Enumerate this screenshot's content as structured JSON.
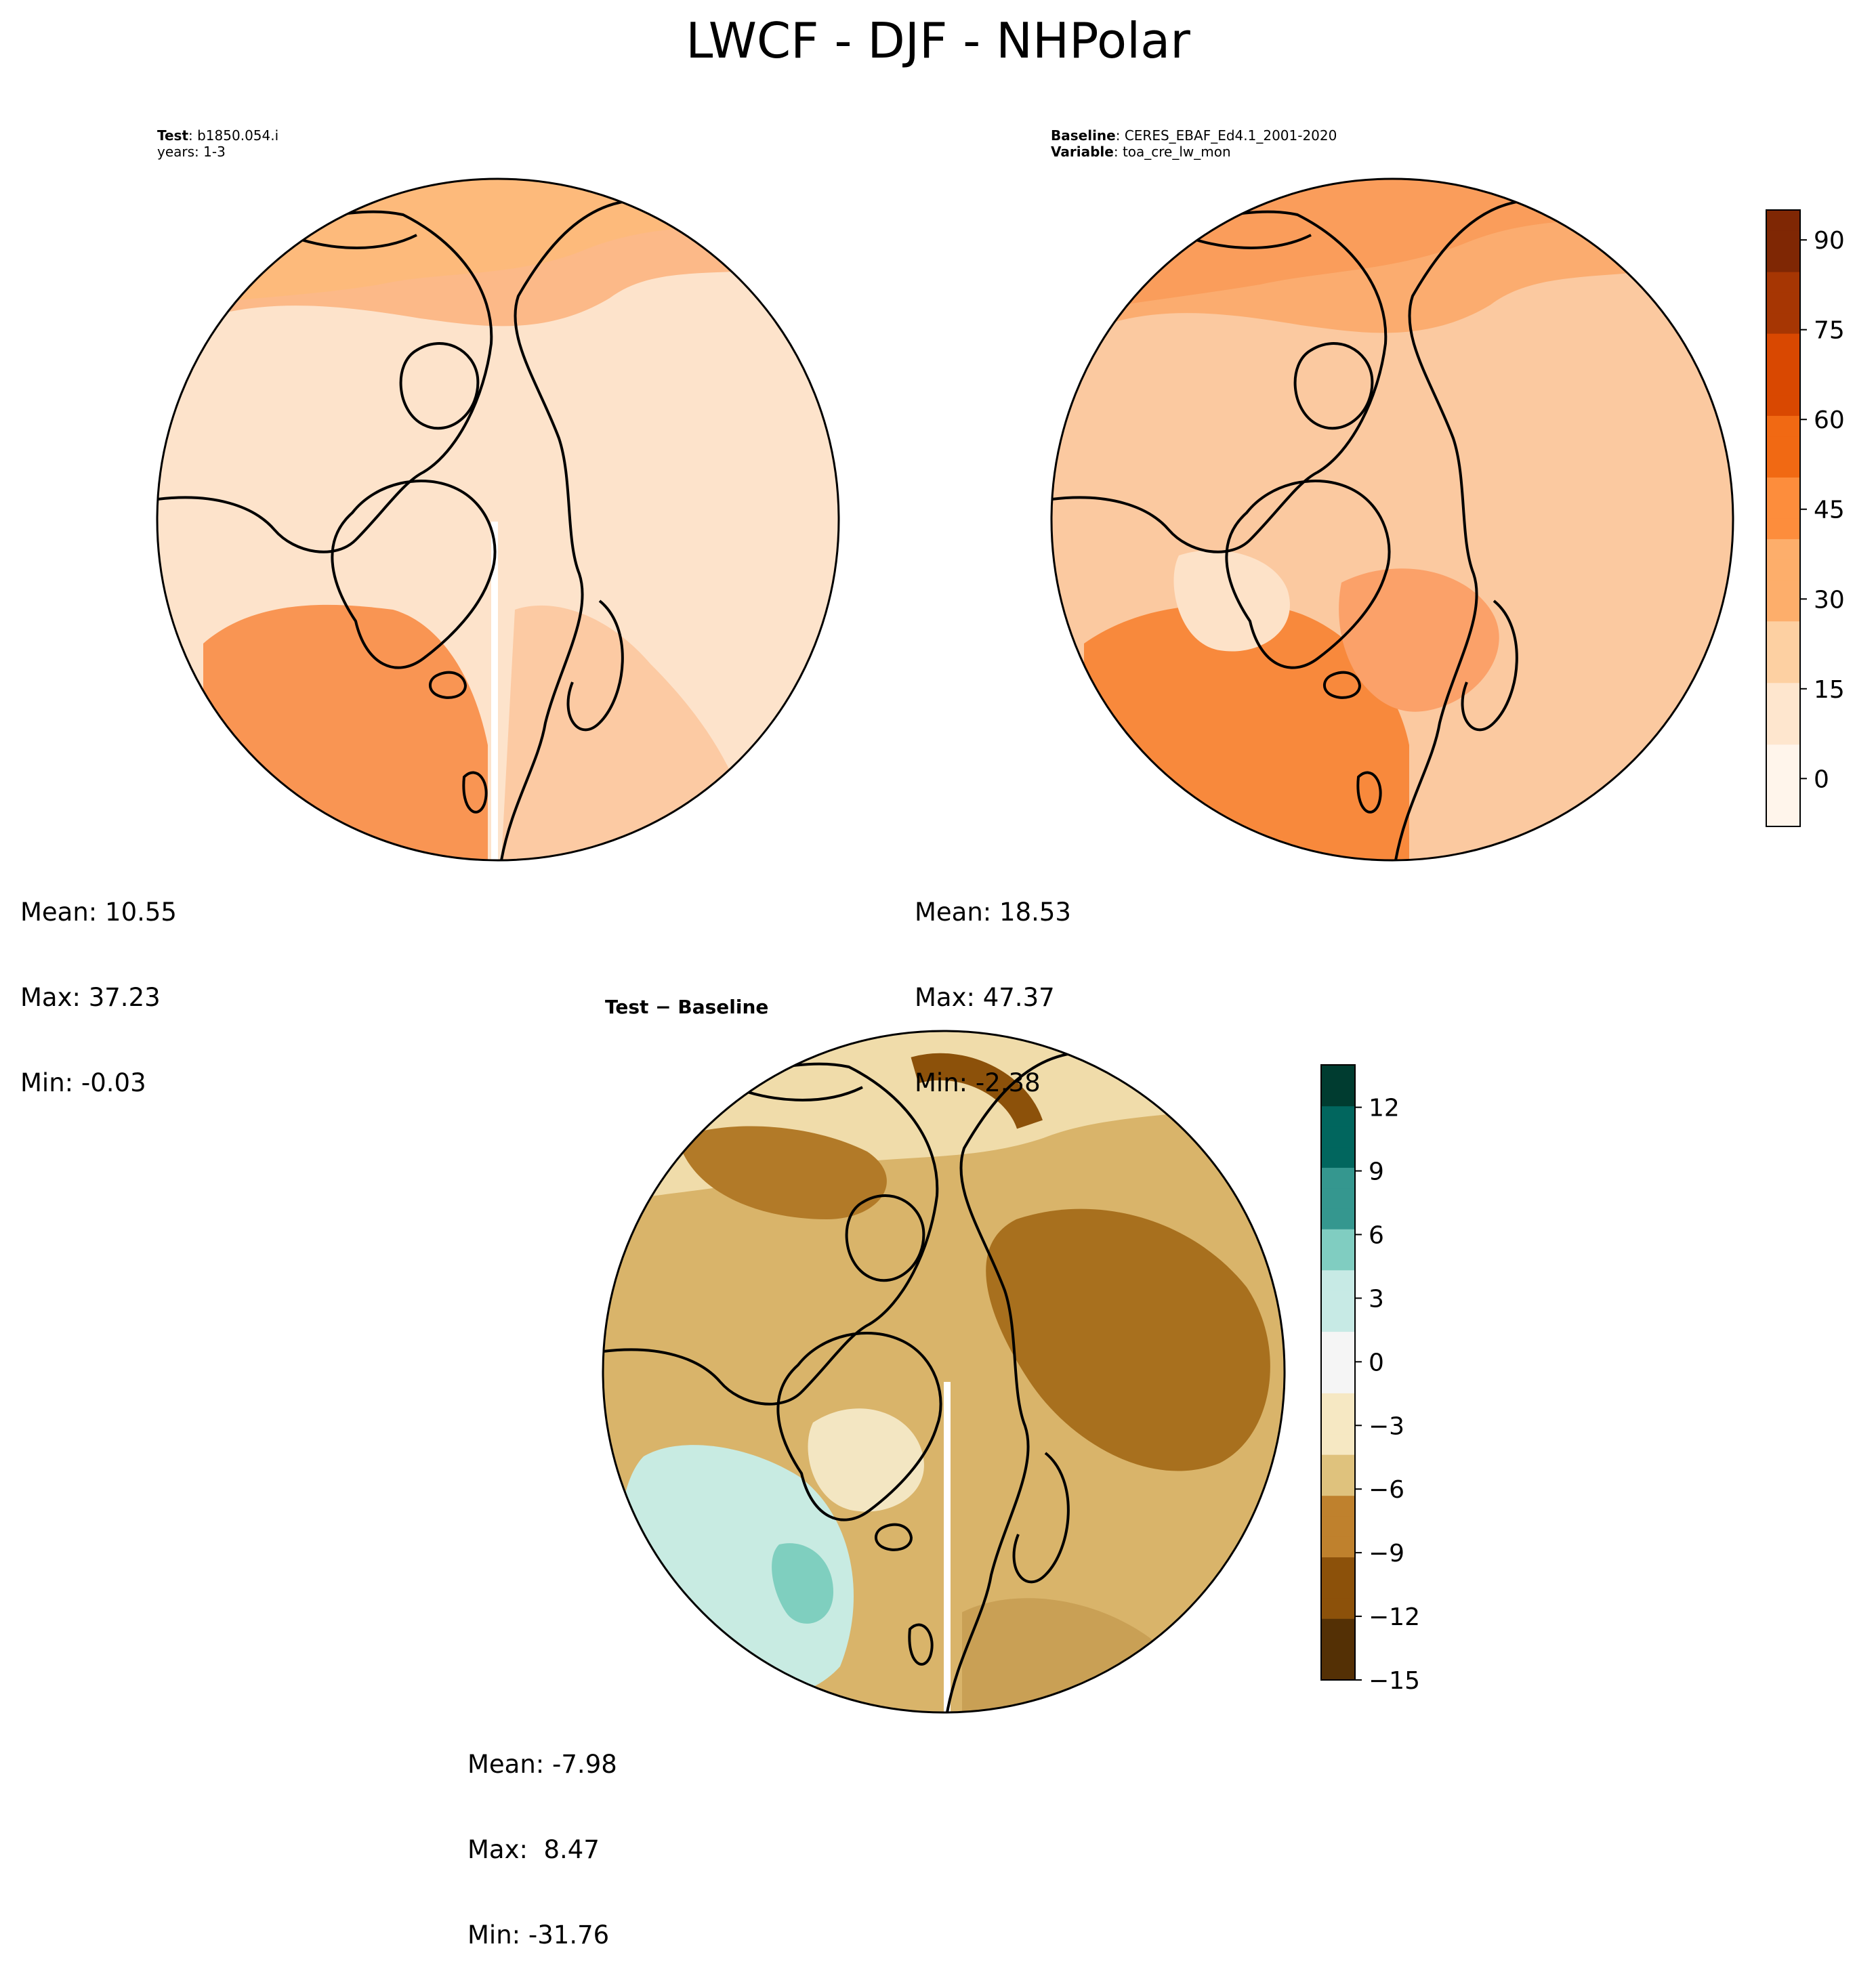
{
  "title": "LWCF - DJF - NHPolar",
  "panels": {
    "test": {
      "header_key1": "Test",
      "header_val1": ": b1850.054.i",
      "header_line2": "years: 1-3",
      "mean": "Mean: 10.55",
      "max": "Max: 37.23",
      "min": "Min: -0.03"
    },
    "baseline": {
      "header_key1": "Baseline",
      "header_val1": ": CERES_EBAF_Ed4.1_2001-2020",
      "header_key2": "Variable",
      "header_val2": ": toa_cre_lw_mon",
      "mean": "Mean: 18.53",
      "max": "Max: 47.37",
      "min": "Min: -2.38"
    },
    "difference": {
      "title": "Test − Baseline",
      "mean": "Mean: -7.98",
      "max": "Max:  8.47",
      "min": "Min: -31.76"
    }
  },
  "colorbar_main": {
    "ticks": [
      "0",
      "15",
      "30",
      "45",
      "60",
      "75",
      "90"
    ],
    "tick_values": [
      0,
      15,
      30,
      45,
      60,
      75,
      90
    ],
    "range": [
      -8,
      95
    ],
    "colormap": "Oranges",
    "colors": [
      "#fff5eb",
      "#fee6ce",
      "#fdd0a2",
      "#fdae6b",
      "#fd8d3c",
      "#f16913",
      "#d94801",
      "#a63603",
      "#7f2704"
    ]
  },
  "colorbar_diff": {
    "ticks": [
      "12",
      "9",
      "6",
      "3",
      "0",
      "−3",
      "−6",
      "−9",
      "−12",
      "−15"
    ],
    "tick_values": [
      12,
      9,
      6,
      3,
      0,
      -3,
      -6,
      -9,
      -12,
      -15
    ],
    "range": [
      -15,
      14
    ],
    "colormap": "BrBG",
    "colors": [
      "#543005",
      "#8c510a",
      "#bf812d",
      "#dfc27d",
      "#f6e8c3",
      "#f5f5f5",
      "#c7eae5",
      "#80cdc1",
      "#35978f",
      "#01665e",
      "#003c30"
    ]
  }
}
